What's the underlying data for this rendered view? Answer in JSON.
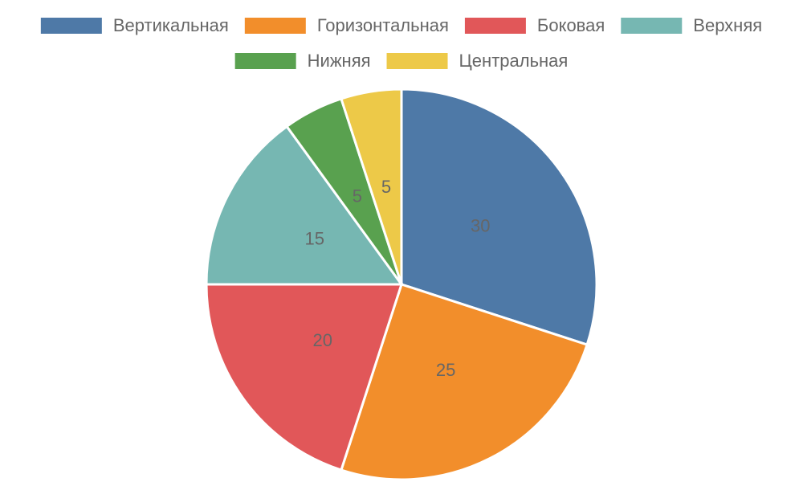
{
  "chart_data": {
    "type": "pie",
    "categories": [
      "Вертикальная",
      "Горизонтальная",
      "Боковая",
      "Верхняя",
      "Нижняя",
      "Центральная"
    ],
    "values": [
      30,
      25,
      20,
      15,
      5,
      5
    ],
    "colors": [
      "#4e79a7",
      "#f28e2b",
      "#e15759",
      "#76b7b2",
      "#59a14f",
      "#edc948"
    ],
    "legend": "top"
  }
}
